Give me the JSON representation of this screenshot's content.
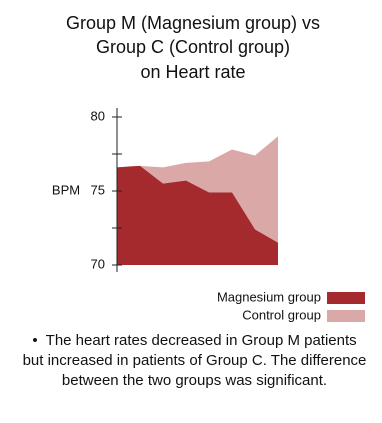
{
  "chart_data": {
    "type": "area",
    "title": [
      "Group M (Magnesium group) vs",
      "Group C (Control group)",
      "on Heart rate"
    ],
    "y_label": "BPM",
    "categories": [
      null,
      null,
      null,
      null,
      null,
      null,
      null,
      null
    ],
    "series": [
      {
        "name": "Control group",
        "color": "#dba8a8",
        "values": [
          76.6,
          76.7,
          76.6,
          76.9,
          77.0,
          77.8,
          77.4,
          78.7
        ]
      },
      {
        "name": "Magnesium group",
        "color": "#a42a2e",
        "values": [
          76.6,
          76.7,
          75.5,
          75.7,
          74.9,
          74.9,
          72.4,
          71.5
        ]
      }
    ],
    "ylim": [
      70,
      80
    ],
    "yticks": [
      70,
      75,
      80
    ],
    "minor_yticks": [
      72.5,
      77.5
    ],
    "legend": "bottom-right",
    "note": "The heart rates decreased in Group M patients but increased in patients of Group C. The difference between the two groups was significant."
  }
}
